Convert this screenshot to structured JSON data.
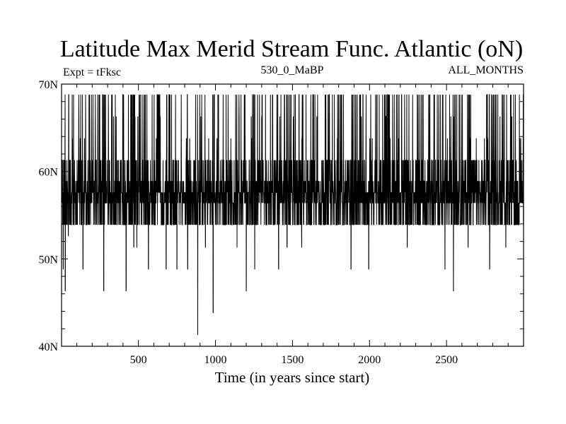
{
  "chart_data": {
    "type": "line",
    "title": "Latitude Max Merid Stream Func. Atlantic (oN)",
    "subtitle_left": "Expt = tFksc",
    "subtitle_center": "530_0_MaBP",
    "subtitle_right": "ALL_MONTHS",
    "xlabel": "Time (in years since start)",
    "ylabel": "",
    "xlim": [
      1,
      3000
    ],
    "ylim": [
      40,
      70
    ],
    "x_ticks": [
      {
        "value": 500,
        "label": "500"
      },
      {
        "value": 1000,
        "label": "1000"
      },
      {
        "value": 1500,
        "label": "1500"
      },
      {
        "value": 2000,
        "label": "2000"
      },
      {
        "value": 2500,
        "label": "2500"
      }
    ],
    "y_ticks": [
      {
        "value": 40,
        "label": "40N"
      },
      {
        "value": 50,
        "label": "50N"
      },
      {
        "value": 60,
        "label": "60N"
      },
      {
        "value": 70,
        "label": "70N"
      }
    ],
    "series": [
      {
        "name": "Latitude of max meridional stream function",
        "color": "#000000",
        "baseline_levels": [
          53.9,
          56.4,
          57.6,
          58.9,
          61.3
        ],
        "frequent_high_value": 68.8,
        "occasional_values": [
          63.8,
          66.3
        ],
        "low_excursions": [
          {
            "year": 12,
            "value": 48.8
          },
          {
            "year": 25,
            "value": 46.3
          },
          {
            "year": 45,
            "value": 52.6
          },
          {
            "year": 140,
            "value": 48.8
          },
          {
            "year": 275,
            "value": 46.3
          },
          {
            "year": 420,
            "value": 46.3
          },
          {
            "year": 470,
            "value": 51.3
          },
          {
            "year": 490,
            "value": 51.3
          },
          {
            "year": 565,
            "value": 48.8
          },
          {
            "year": 680,
            "value": 48.8
          },
          {
            "year": 750,
            "value": 48.8
          },
          {
            "year": 820,
            "value": 48.8
          },
          {
            "year": 885,
            "value": 41.3
          },
          {
            "year": 935,
            "value": 51.3
          },
          {
            "year": 985,
            "value": 43.8
          },
          {
            "year": 1140,
            "value": 51.3
          },
          {
            "year": 1200,
            "value": 46.3
          },
          {
            "year": 1255,
            "value": 48.8
          },
          {
            "year": 1410,
            "value": 48.8
          },
          {
            "year": 1465,
            "value": 51.3
          },
          {
            "year": 1560,
            "value": 51.3
          },
          {
            "year": 1880,
            "value": 48.8
          },
          {
            "year": 1995,
            "value": 48.8
          },
          {
            "year": 2245,
            "value": 51.3
          },
          {
            "year": 2490,
            "value": 48.8
          },
          {
            "year": 2545,
            "value": 46.3
          },
          {
            "year": 2640,
            "value": 51.3
          },
          {
            "year": 2780,
            "value": 48.8
          },
          {
            "year": 2885,
            "value": 51.3
          }
        ]
      }
    ]
  }
}
